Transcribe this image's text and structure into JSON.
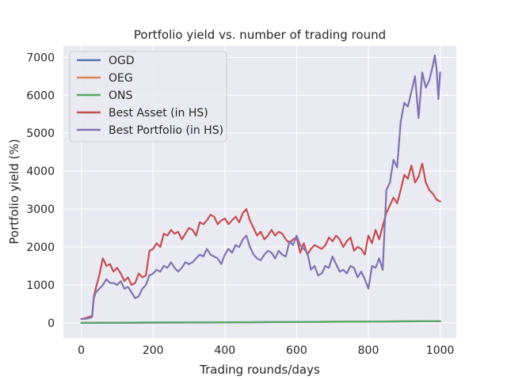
{
  "chart_data": {
    "type": "line",
    "title": "Portfolio yield vs. number of trading round",
    "xlabel": "Trading rounds/days",
    "ylabel": "Portfolio yield (%)",
    "xlim": [
      -50,
      1045
    ],
    "ylim": [
      -400,
      7300
    ],
    "xticks": [
      0,
      200,
      400,
      600,
      800,
      1000
    ],
    "yticks": [
      0,
      1000,
      2000,
      3000,
      4000,
      5000,
      6000,
      7000
    ],
    "xtick_labels": [
      "0",
      "200",
      "400",
      "600",
      "800",
      "1000"
    ],
    "ytick_labels": [
      "0",
      "1000",
      "2000",
      "3000",
      "4000",
      "5000",
      "6000",
      "7000"
    ],
    "grid": true,
    "legend_position": "top-left",
    "series": [
      {
        "name": "OGD",
        "color": "#4c72b0",
        "x": [
          0,
          100,
          200,
          300,
          400,
          500,
          600,
          700,
          800,
          900,
          1000
        ],
        "y": [
          0,
          3,
          6,
          10,
          14,
          18,
          23,
          28,
          33,
          38,
          42
        ]
      },
      {
        "name": "OEG",
        "color": "#dd8452",
        "x": [
          0,
          100,
          200,
          300,
          400,
          500,
          600,
          700,
          800,
          900,
          1000
        ],
        "y": [
          0,
          3,
          6,
          10,
          14,
          18,
          23,
          28,
          33,
          38,
          42
        ]
      },
      {
        "name": "ONS",
        "color": "#55a868",
        "x": [
          0,
          100,
          200,
          300,
          400,
          500,
          600,
          700,
          800,
          900,
          1000
        ],
        "y": [
          0,
          4,
          8,
          12,
          16,
          20,
          25,
          30,
          35,
          40,
          45
        ]
      },
      {
        "name": "Best Asset (in HS)",
        "color": "#c44e52",
        "x": [
          0,
          10,
          20,
          30,
          35,
          40,
          50,
          60,
          70,
          80,
          90,
          100,
          110,
          120,
          130,
          140,
          150,
          160,
          170,
          180,
          190,
          200,
          210,
          220,
          230,
          240,
          250,
          260,
          270,
          280,
          290,
          300,
          310,
          320,
          330,
          340,
          350,
          360,
          370,
          380,
          390,
          400,
          410,
          420,
          430,
          440,
          450,
          460,
          470,
          480,
          490,
          500,
          510,
          520,
          530,
          540,
          550,
          560,
          570,
          580,
          590,
          600,
          610,
          620,
          630,
          640,
          650,
          660,
          670,
          680,
          690,
          700,
          710,
          720,
          730,
          740,
          750,
          760,
          770,
          780,
          790,
          800,
          810,
          820,
          830,
          840,
          850,
          860,
          870,
          880,
          890,
          900,
          910,
          920,
          930,
          940,
          950,
          960,
          970,
          980,
          990,
          1000
        ],
        "y": [
          100,
          120,
          150,
          180,
          700,
          900,
          1250,
          1700,
          1500,
          1550,
          1350,
          1450,
          1300,
          1100,
          1200,
          1000,
          1050,
          1300,
          1200,
          1250,
          1900,
          1950,
          2100,
          2000,
          2350,
          2300,
          2450,
          2350,
          2400,
          2200,
          2350,
          2500,
          2450,
          2300,
          2650,
          2600,
          2700,
          2850,
          2800,
          2600,
          2700,
          2750,
          2600,
          2700,
          2800,
          2650,
          2900,
          3000,
          2700,
          2500,
          2300,
          2400,
          2200,
          2300,
          2450,
          2300,
          2400,
          2350,
          2200,
          2100,
          2200,
          2250,
          1850,
          2100,
          1800,
          1950,
          2050,
          2000,
          1950,
          2050,
          2250,
          2150,
          2300,
          2200,
          2000,
          2150,
          2250,
          1900,
          2000,
          1950,
          1800,
          2300,
          2100,
          2450,
          2200,
          2550,
          2900,
          3100,
          3300,
          3150,
          3500,
          3900,
          3800,
          4150,
          3700,
          3850,
          4200,
          3700,
          3500,
          3400,
          3250,
          3200
        ]
      },
      {
        "name": "Best Portfolio (in HS)",
        "color": "#8172b2",
        "x": [
          0,
          10,
          20,
          30,
          35,
          40,
          50,
          60,
          70,
          80,
          90,
          100,
          110,
          120,
          130,
          140,
          150,
          160,
          170,
          180,
          190,
          200,
          210,
          220,
          230,
          240,
          250,
          260,
          270,
          280,
          290,
          300,
          310,
          320,
          330,
          340,
          350,
          360,
          370,
          380,
          390,
          400,
          410,
          420,
          430,
          440,
          450,
          460,
          470,
          480,
          490,
          500,
          510,
          520,
          530,
          540,
          550,
          560,
          570,
          580,
          590,
          600,
          610,
          620,
          630,
          640,
          650,
          660,
          670,
          680,
          690,
          700,
          710,
          720,
          730,
          740,
          750,
          760,
          770,
          780,
          790,
          800,
          810,
          820,
          830,
          840,
          850,
          860,
          870,
          880,
          890,
          900,
          910,
          920,
          930,
          940,
          950,
          960,
          970,
          980,
          985,
          990,
          995,
          1000
        ],
        "y": [
          100,
          110,
          120,
          150,
          650,
          800,
          900,
          1000,
          1150,
          1050,
          1050,
          1000,
          1100,
          900,
          950,
          800,
          650,
          700,
          900,
          1000,
          1250,
          1300,
          1400,
          1350,
          1500,
          1450,
          1600,
          1450,
          1350,
          1450,
          1600,
          1550,
          1600,
          1700,
          1800,
          1750,
          1950,
          1800,
          1750,
          1700,
          1550,
          1800,
          1950,
          1850,
          2050,
          2000,
          2200,
          2300,
          2000,
          1800,
          1700,
          1650,
          1800,
          1900,
          1850,
          1700,
          1900,
          1800,
          1750,
          2150,
          2050,
          2300,
          2050,
          1950,
          1850,
          1400,
          1500,
          1250,
          1300,
          1500,
          1450,
          1750,
          1550,
          1350,
          1400,
          1300,
          1500,
          1450,
          1200,
          1350,
          1150,
          900,
          1500,
          1450,
          1700,
          1400,
          3500,
          3700,
          4300,
          4100,
          5300,
          5800,
          5700,
          6100,
          6500,
          5400,
          6600,
          6200,
          6400,
          6800,
          7050,
          6700,
          5900,
          6600
        ]
      }
    ]
  }
}
